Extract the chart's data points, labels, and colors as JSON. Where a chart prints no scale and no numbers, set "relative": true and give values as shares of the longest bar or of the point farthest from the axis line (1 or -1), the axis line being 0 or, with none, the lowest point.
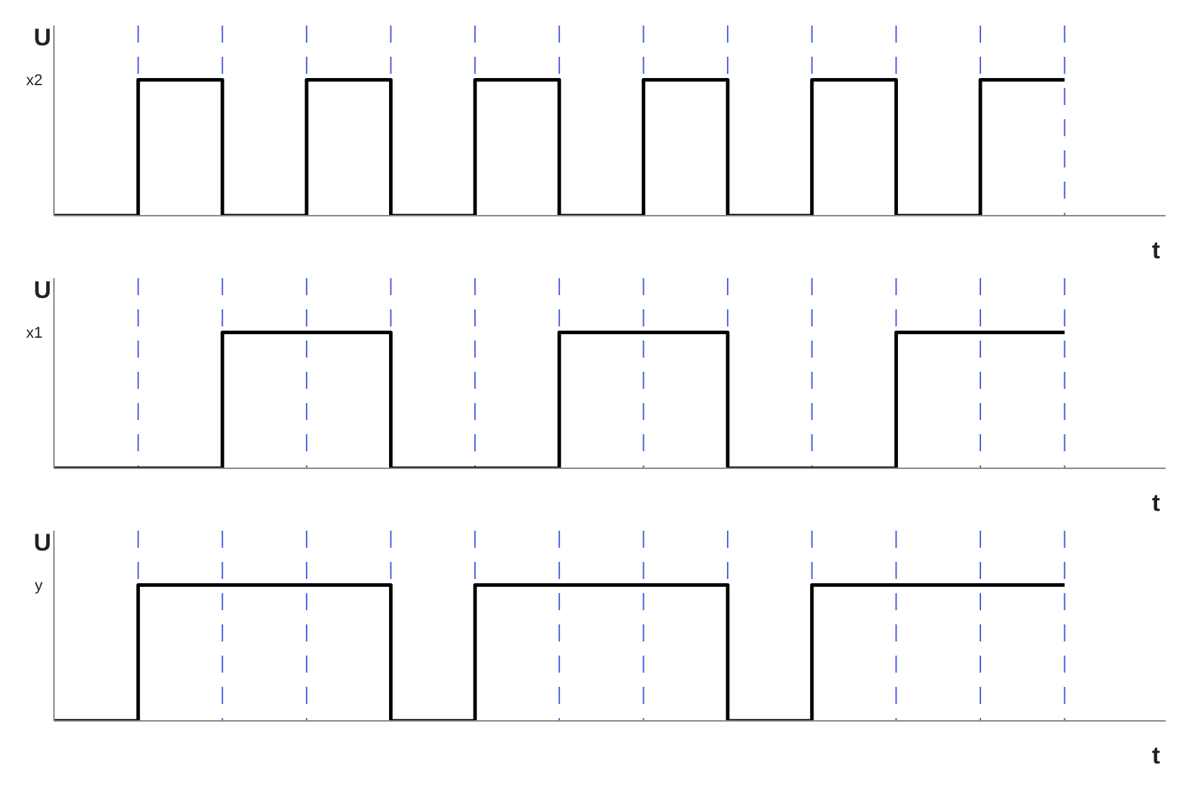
{
  "chart_data": [
    {
      "type": "step",
      "ylabel": "U",
      "xlabel": "t",
      "relative": true,
      "grid": "x",
      "categories": [
        null,
        null,
        null,
        null,
        null,
        null,
        null,
        null,
        null,
        null,
        null,
        null,
        null
      ],
      "series": [
        {
          "name": "x2",
          "color": "#000000",
          "values": [
            0,
            1,
            0,
            1,
            0,
            1,
            0,
            1,
            0,
            1,
            0,
            1,
            1
          ]
        }
      ]
    },
    {
      "type": "step",
      "ylabel": "U",
      "xlabel": "t",
      "relative": true,
      "grid": "x",
      "categories": [
        null,
        null,
        null,
        null,
        null,
        null,
        null,
        null,
        null,
        null,
        null,
        null,
        null
      ],
      "series": [
        {
          "name": "x1",
          "color": "#000000",
          "values": [
            0,
            0,
            1,
            1,
            0,
            0,
            1,
            1,
            0,
            0,
            1,
            1,
            1
          ]
        }
      ]
    },
    {
      "type": "step",
      "ylabel": "U",
      "xlabel": "t",
      "relative": true,
      "grid": "x",
      "categories": [
        null,
        null,
        null,
        null,
        null,
        null,
        null,
        null,
        null,
        null,
        null,
        null,
        null
      ],
      "series": [
        {
          "name": "y",
          "color": "#000000",
          "values": [
            0,
            1,
            1,
            1,
            0,
            1,
            1,
            1,
            0,
            1,
            1,
            1,
            1
          ]
        }
      ]
    }
  ]
}
